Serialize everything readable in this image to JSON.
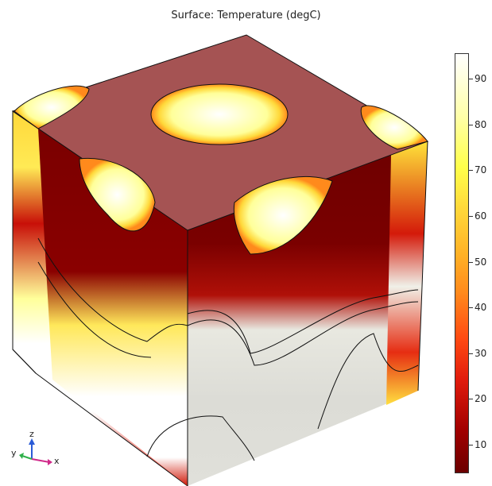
{
  "plot": {
    "title": "Surface: Temperature (degC)"
  },
  "colorbar": {
    "ticks": [
      "90",
      "80",
      "70",
      "60",
      "50",
      "40",
      "30",
      "20",
      "10"
    ],
    "colors": [
      "#6b0000",
      "#e01b0d",
      "#ff8a1c",
      "#ffd83a",
      "#ffff4a",
      "#ffffff"
    ]
  },
  "axes_triad": {
    "x": "x",
    "y": "y",
    "z": "z"
  }
}
